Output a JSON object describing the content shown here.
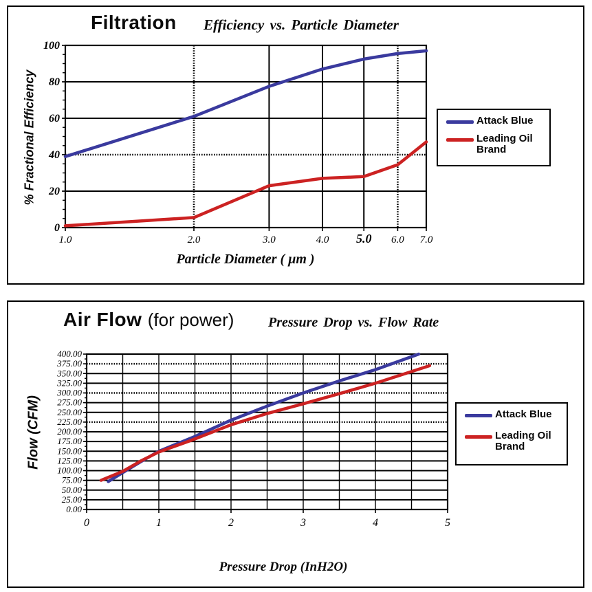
{
  "colors": {
    "blue": "#3A3A9E",
    "red": "#CC2222",
    "grid": "#000000",
    "background": "#FFFFFF"
  },
  "chart_data": {
    "note": "two line charts, see charts array"
  },
  "charts": [
    {
      "id": "filtration",
      "chart_type": "line",
      "title_main": "Filtration",
      "title_sub": "Efficiency vs. Particle Diameter",
      "xlabel": "Particle Diameter ( μm )",
      "ylabel": "% Fractional Efficiency",
      "x_scale": "log",
      "xlim": [
        1,
        7
      ],
      "ylim": [
        0,
        100
      ],
      "x_ticks": [
        {
          "v": 1,
          "label": "1.0"
        },
        {
          "v": 2,
          "label": "2.0"
        },
        {
          "v": 3,
          "label": "3.0"
        },
        {
          "v": 4,
          "label": "4.0"
        },
        {
          "v": 5,
          "label": "5.0",
          "bold": true
        },
        {
          "v": 6,
          "label": "6.0"
        },
        {
          "v": 7,
          "label": "7.0"
        }
      ],
      "y_ticks": [
        {
          "v": 0,
          "label": "0"
        },
        {
          "v": 20,
          "label": "20"
        },
        {
          "v": 40,
          "label": "40"
        },
        {
          "v": 60,
          "label": "60"
        },
        {
          "v": 80,
          "label": "80"
        },
        {
          "v": 100,
          "label": "100"
        }
      ],
      "x_gridlines": {
        "solid": [
          3,
          4,
          5
        ],
        "dotted": [
          2,
          6
        ]
      },
      "y_gridlines": {
        "solid": [
          20,
          60,
          80
        ],
        "dotted": [
          40
        ]
      },
      "y_minor_step": 5,
      "series": [
        {
          "name": "Attack Blue",
          "color": "#3A3A9E",
          "points": [
            [
              1,
              39
            ],
            [
              2,
              61
            ],
            [
              3,
              77.5
            ],
            [
              4,
              87
            ],
            [
              5,
              92.5
            ],
            [
              6,
              95.5
            ],
            [
              7,
              97
            ]
          ]
        },
        {
          "name": "Leading Oil Brand",
          "color": "#CC2222",
          "points": [
            [
              1,
              1
            ],
            [
              2,
              5.5
            ],
            [
              3,
              23
            ],
            [
              4,
              27
            ],
            [
              5,
              28
            ],
            [
              6,
              34.5
            ],
            [
              7,
              47
            ]
          ]
        }
      ]
    },
    {
      "id": "airflow",
      "chart_type": "line",
      "title_main": "Air Flow",
      "title_paren": "(for power)",
      "title_sub": "Pressure Drop vs. Flow Rate",
      "xlabel": "Pressure Drop (InH2O)",
      "ylabel": "Flow (CFM)",
      "x_scale": "linear",
      "xlim": [
        0,
        5
      ],
      "ylim": [
        0,
        400
      ],
      "x_ticks": [
        {
          "v": 0,
          "label": "0"
        },
        {
          "v": 1,
          "label": "1"
        },
        {
          "v": 2,
          "label": "2"
        },
        {
          "v": 3,
          "label": "3"
        },
        {
          "v": 4,
          "label": "4"
        },
        {
          "v": 5,
          "label": "5"
        }
      ],
      "y_ticks": [
        {
          "v": 400,
          "label": "400.00"
        },
        {
          "v": 375,
          "label": "375.00"
        },
        {
          "v": 350,
          "label": "350.00"
        },
        {
          "v": 325,
          "label": "325.00"
        },
        {
          "v": 300,
          "label": "300.00"
        },
        {
          "v": 275,
          "label": "275.00"
        },
        {
          "v": 250,
          "label": "250.00"
        },
        {
          "v": 225,
          "label": "225.00"
        },
        {
          "v": 200,
          "label": "200.00"
        },
        {
          "v": 175,
          "label": "175.00"
        },
        {
          "v": 150,
          "label": "150.00"
        },
        {
          "v": 125,
          "label": "125.00"
        },
        {
          "v": 100,
          "label": "100.00"
        },
        {
          "v": 75,
          "label": "75.00"
        },
        {
          "v": 50,
          "label": "50.00"
        },
        {
          "v": 25,
          "label": "25.00"
        },
        {
          "v": 0,
          "label": "0.00"
        }
      ],
      "x_gridlines": {
        "solid": [
          0.5,
          1,
          1.5,
          2,
          2.5,
          3,
          3.5,
          4,
          4.5
        ],
        "dotted": []
      },
      "y_gridlines": {
        "solid": [
          25,
          50,
          75,
          100,
          125,
          150,
          175,
          200,
          250,
          275,
          325,
          350
        ],
        "dotted": [
          225,
          300,
          375
        ]
      },
      "y_minor_step": 12.5,
      "series": [
        {
          "name": "Attack Blue",
          "color": "#3A3A9E",
          "points": [
            [
              0.3,
              72
            ],
            [
              0.5,
              95
            ],
            [
              0.75,
              123
            ],
            [
              1,
              150
            ],
            [
              1.5,
              188
            ],
            [
              2,
              230
            ],
            [
              2.5,
              266
            ],
            [
              3,
              300
            ],
            [
              3.5,
              331
            ],
            [
              4,
              360
            ],
            [
              4.6,
              400
            ]
          ]
        },
        {
          "name": "Leading Oil Brand",
          "color": "#CC2222",
          "points": [
            [
              0.2,
              75
            ],
            [
              0.5,
              98
            ],
            [
              0.75,
              125
            ],
            [
              1,
              148
            ],
            [
              1.45,
              178
            ],
            [
              2,
              218
            ],
            [
              2.5,
              247
            ],
            [
              3,
              272
            ],
            [
              3.5,
              298
            ],
            [
              4,
              325
            ],
            [
              4.75,
              370
            ]
          ]
        }
      ]
    }
  ]
}
